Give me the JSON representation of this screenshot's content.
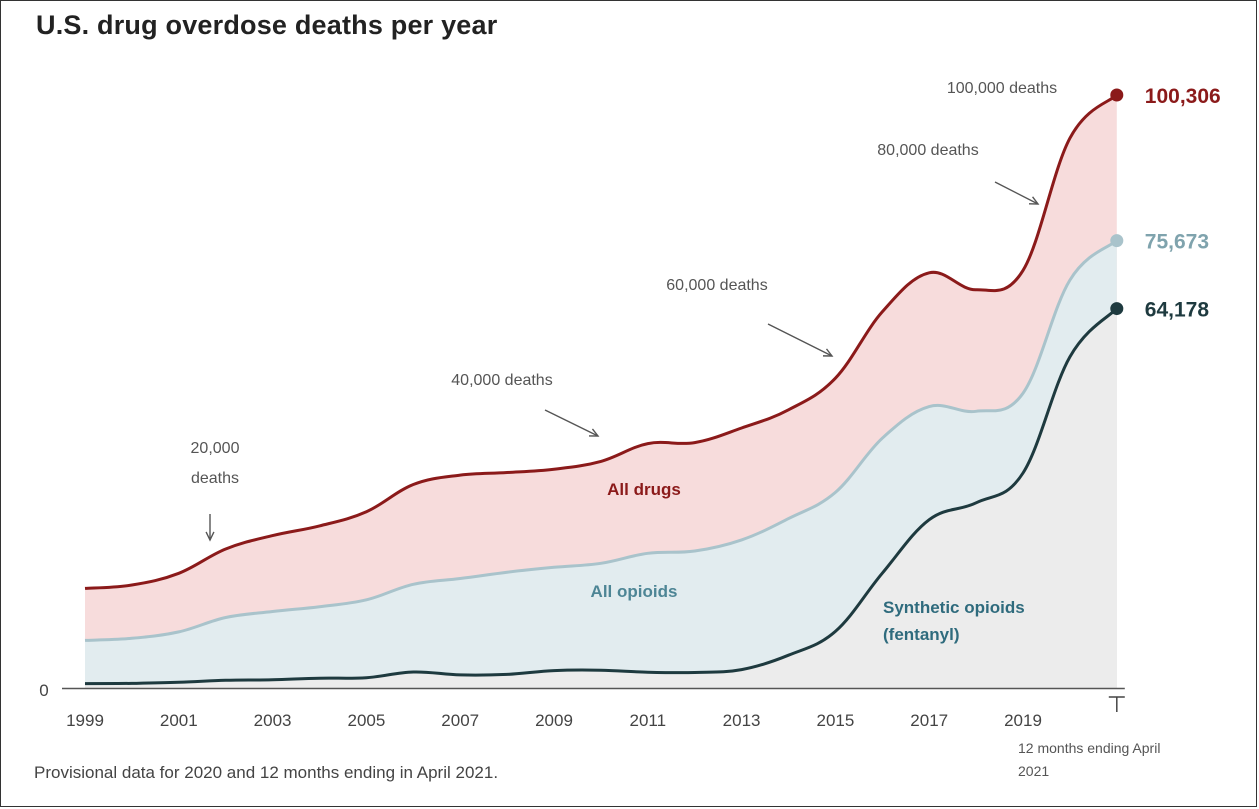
{
  "title": "U.S. drug overdose deaths per year",
  "footnote": "Provisional data for 2020 and 12 months ending in April 2021.",
  "colors": {
    "all_drugs": "#8b1a1a",
    "all_drugs_fill": "#f7dcdc",
    "all_opioids": "#a9c3cb",
    "all_opioids_fill": "#e2ecef",
    "synthetic": "#1e3a3f",
    "synthetic_fill": "#ececec",
    "end_opioids_text": "#7fa3ad"
  },
  "chart_data": {
    "type": "area",
    "title": "U.S. drug overdose deaths per year",
    "x": [
      1999,
      2000,
      2001,
      2002,
      2003,
      2004,
      2005,
      2006,
      2007,
      2008,
      2009,
      2010,
      2011,
      2012,
      2013,
      2014,
      2015,
      2016,
      2017,
      2018,
      2019,
      2020,
      "12 months ending April 2021"
    ],
    "x_tick_labels": [
      "1999",
      "2001",
      "2003",
      "2005",
      "2007",
      "2009",
      "2011",
      "2013",
      "2015",
      "2017",
      "2019"
    ],
    "last_x_label": "12 months ending April 2021",
    "y_tick_labels": [
      "0"
    ],
    "ylim": [
      0,
      100306
    ],
    "series": [
      {
        "name": "All drugs",
        "values": [
          16849,
          17415,
          19394,
          23518,
          25785,
          27424,
          29813,
          34425,
          36010,
          36450,
          37004,
          38329,
          41340,
          41502,
          43982,
          47055,
          52404,
          63632,
          70237,
          67367,
          70630,
          93000,
          100306
        ]
      },
      {
        "name": "All opioids",
        "values": [
          8050,
          8407,
          9496,
          11920,
          12940,
          13756,
          14918,
          17545,
          18516,
          19582,
          20422,
          21089,
          22784,
          23166,
          25052,
          28647,
          33091,
          42249,
          47600,
          46802,
          49860,
          69000,
          75673
        ]
      },
      {
        "name": "Synthetic opioids (fentanyl)",
        "values": [
          730,
          782,
          957,
          1295,
          1400,
          1664,
          1742,
          2707,
          2213,
          2306,
          2946,
          3007,
          2666,
          2628,
          3105,
          5544,
          9580,
          19413,
          28466,
          31335,
          36359,
          56000,
          64178
        ]
      }
    ],
    "end_labels": [
      "100,306",
      "75,673",
      "64,178"
    ],
    "annotations": [
      "20,000 deaths",
      "40,000 deaths",
      "60,000 deaths",
      "80,000 deaths",
      "100,000 deaths"
    ],
    "grid": false,
    "legend": "inline labels"
  }
}
